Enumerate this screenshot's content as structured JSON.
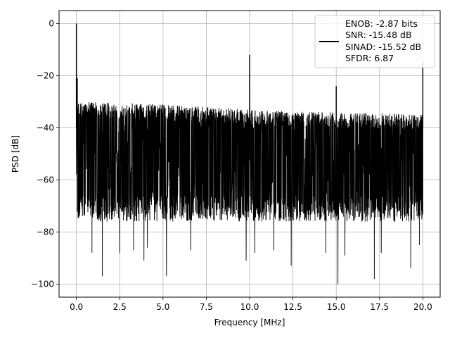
{
  "chart_data": {
    "type": "line",
    "title": "",
    "xlabel": "Frequency [MHz]",
    "ylabel": "PSD [dB]",
    "xlim": [
      -1.0,
      21.0
    ],
    "ylim": [
      -105,
      5
    ],
    "x_ticks": [
      0.0,
      2.5,
      5.0,
      7.5,
      10.0,
      12.5,
      15.0,
      17.5,
      20.0
    ],
    "x_tick_labels": [
      "0.0",
      "2.5",
      "5.0",
      "7.5",
      "10.0",
      "12.5",
      "15.0",
      "17.5",
      "20.0"
    ],
    "y_ticks": [
      0,
      -20,
      -40,
      -60,
      -80,
      -100
    ],
    "y_tick_labels": [
      "0",
      "−20",
      "−40",
      "−60",
      "−80",
      "−100"
    ],
    "grid": true,
    "legend_placement": "top-right",
    "legend_entries": [
      "ENOB: -2.87 bits",
      "SNR: -15.48 dB",
      "SINAD: -15.52 dB",
      "SFDR: 6.87"
    ],
    "series_color": "#000000",
    "noise_floor": {
      "upper_envelope_db": {
        "x": [
          0.1,
          5.0,
          10.0,
          15.0,
          20.0
        ],
        "y": [
          -30,
          -31,
          -33,
          -34,
          -35
        ]
      },
      "lower_envelope_db": -72,
      "deep_dip_db": -100
    },
    "spurs": [
      {
        "x": 0.0,
        "y": 0
      },
      {
        "x": 0.05,
        "y": -21
      },
      {
        "x": 10.0,
        "y": -12
      },
      {
        "x": 15.0,
        "y": -24
      },
      {
        "x": 20.0,
        "y": -15
      }
    ],
    "dips": [
      {
        "x": 0.9,
        "y": -88
      },
      {
        "x": 1.5,
        "y": -97
      },
      {
        "x": 2.5,
        "y": -88
      },
      {
        "x": 3.3,
        "y": -87
      },
      {
        "x": 3.9,
        "y": -91
      },
      {
        "x": 4.1,
        "y": -86
      },
      {
        "x": 5.2,
        "y": -97
      },
      {
        "x": 6.6,
        "y": -87
      },
      {
        "x": 9.8,
        "y": -91
      },
      {
        "x": 10.3,
        "y": -88
      },
      {
        "x": 11.4,
        "y": -87
      },
      {
        "x": 12.4,
        "y": -93
      },
      {
        "x": 14.4,
        "y": -88
      },
      {
        "x": 15.1,
        "y": -100
      },
      {
        "x": 15.5,
        "y": -89
      },
      {
        "x": 17.2,
        "y": -98
      },
      {
        "x": 17.6,
        "y": -88
      },
      {
        "x": 19.3,
        "y": -94
      },
      {
        "x": 19.8,
        "y": -85
      }
    ]
  }
}
